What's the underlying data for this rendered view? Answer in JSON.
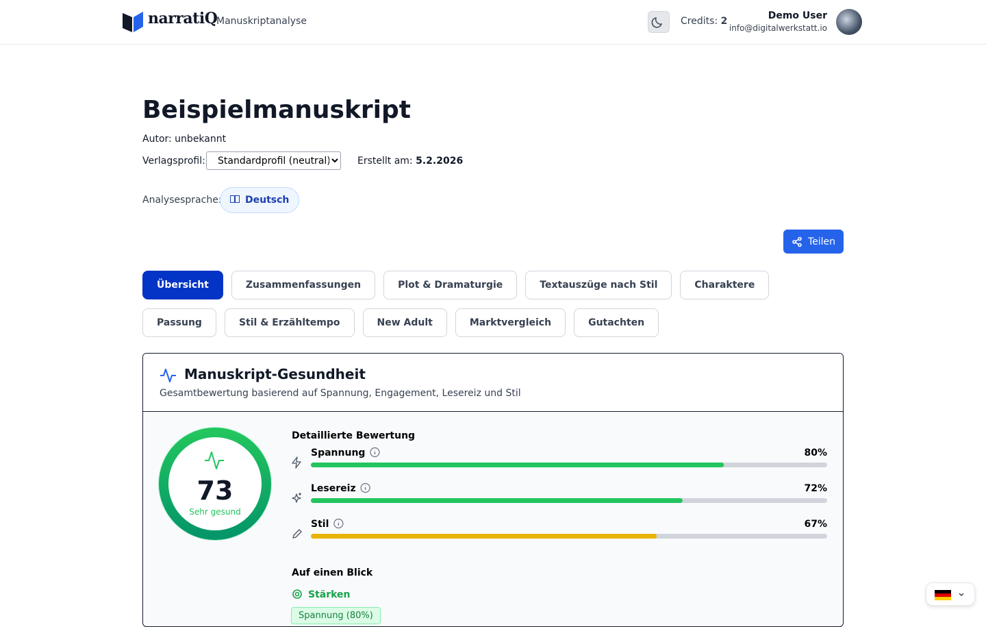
{
  "header": {
    "brand": "narratiQ",
    "section": "Manuskriptanalyse",
    "credits_label": "Credits:",
    "credits": 2,
    "user_name": "Demo User",
    "user_email": "info@digitalwerkstatt.io"
  },
  "manuscript": {
    "title": "Beispielmanuskript",
    "author": "Autor: unbekannt",
    "profile_label": "Verlagsprofil:",
    "profile": "Standardprofil (neutral)",
    "created_label": "Erstellt am:",
    "created": "5.2.2026",
    "language_label": "Analysesprache:",
    "language": "Deutsch"
  },
  "share_button": "Teilen",
  "active_tab": 0,
  "tabs": [
    "Übersicht",
    "Zusammenfassungen",
    "Plot & Dramaturgie",
    "Textauszüge nach Stil",
    "Charaktere",
    "Passung",
    "Stil & Erzähltempo",
    "New Adult",
    "Marktvergleich",
    "Gutachten"
  ],
  "health": {
    "title": "Manuskript-Gesundheit",
    "subtitle": "Gesamtbewertung basierend auf Spannung, Engagement, Lesereiz und Stil",
    "score": 73,
    "score_label": "Sehr gesund",
    "details_title": "Detaillierte Bewertung",
    "metrics": [
      {
        "name": "Spannung",
        "value": 80,
        "label": "80%",
        "color": "#22c55e"
      },
      {
        "name": "Lesereiz",
        "value": 72,
        "label": "72%",
        "color": "#22c55e"
      },
      {
        "name": "Stil",
        "value": 67,
        "label": "67%",
        "color": "#eab308"
      }
    ],
    "glance_title": "Auf einen Blick",
    "strengths_title": "Stärken",
    "strengths": [
      "Spannung (80%)"
    ]
  }
}
